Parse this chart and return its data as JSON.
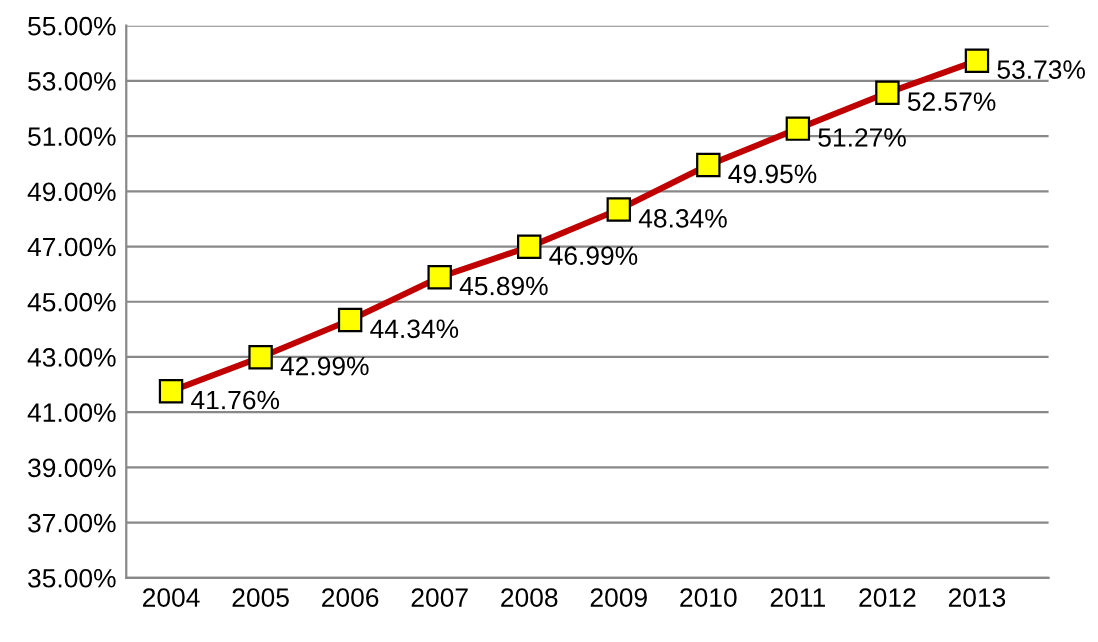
{
  "chart_data": {
    "type": "line",
    "categories": [
      "2004",
      "2005",
      "2006",
      "2007",
      "2008",
      "2009",
      "2010",
      "2011",
      "2012",
      "2013"
    ],
    "series": [
      {
        "color": "#c00000",
        "colors": [
          "#ffff00",
          "#ffff00",
          "#ffff00",
          "#ffff00",
          "#ffff00",
          "#ffff00",
          "#ffff00",
          "#ffff00",
          "#ffff00",
          "#ffff00"
        ],
        "values": [
          41.76,
          42.99,
          44.34,
          45.89,
          46.99,
          48.34,
          49.95,
          51.27,
          52.57,
          53.73
        ],
        "value_labels": [
          "41.76%",
          "42.99%",
          "44.34%",
          "45.89%",
          "46.99%",
          "48.34%",
          "49.95%",
          "51.27%",
          "52.57%",
          "53.73%"
        ]
      }
    ],
    "ylim": [
      35,
      55
    ],
    "yticks": [
      {
        "value": 35,
        "label": "35.00%"
      },
      {
        "value": 37,
        "label": "37.00%"
      },
      {
        "value": 39,
        "label": "39.00%"
      },
      {
        "value": 41,
        "label": "41.00%"
      },
      {
        "value": 43,
        "label": "43.00%"
      },
      {
        "value": 45,
        "label": "45.00%"
      },
      {
        "value": 47,
        "label": "47.00%"
      },
      {
        "value": 49,
        "label": "49.00%"
      },
      {
        "value": 51,
        "label": "51.00%"
      },
      {
        "value": 53,
        "label": "53.00%"
      },
      {
        "value": 55,
        "label": "55.00%"
      }
    ],
    "grid": "y",
    "marker": "square",
    "line_style": "solid",
    "legend": false
  }
}
